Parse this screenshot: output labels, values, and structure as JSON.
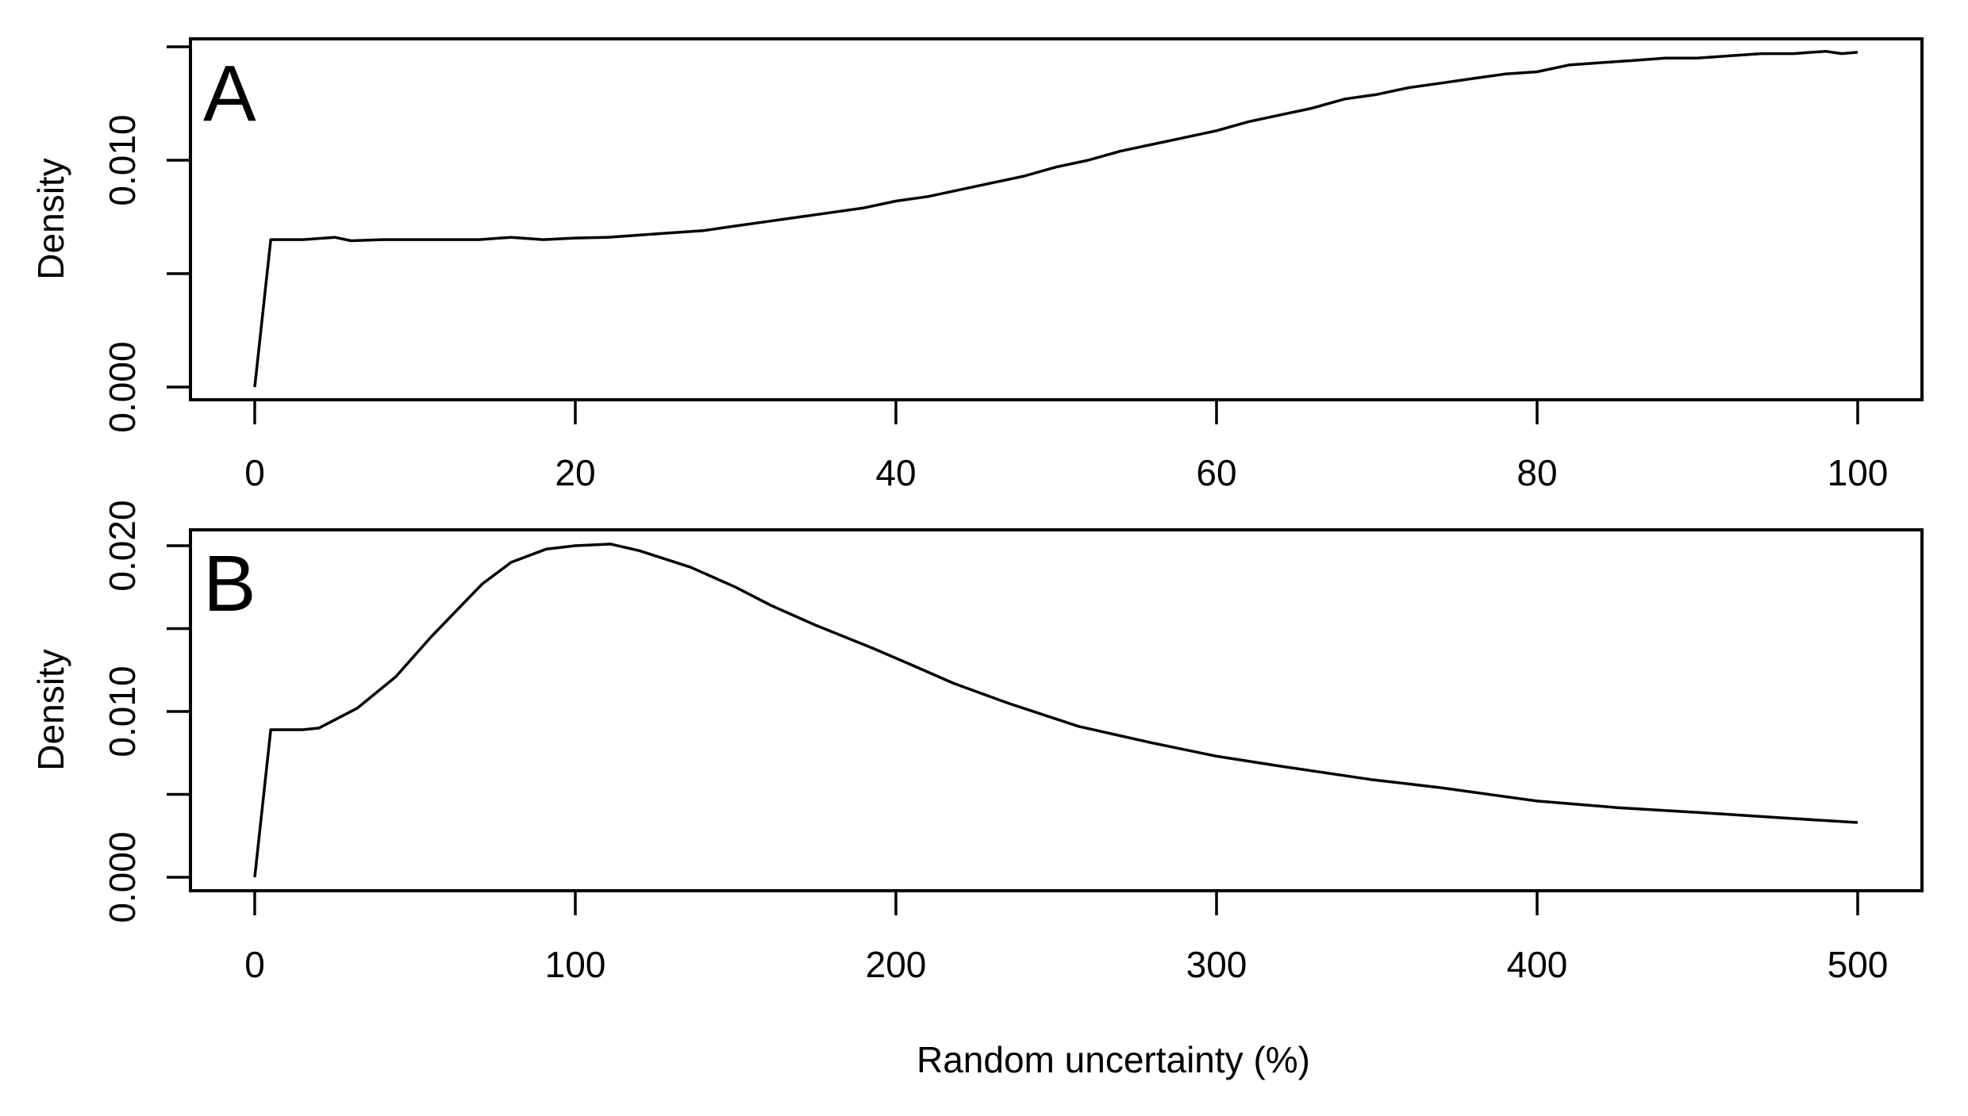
{
  "figure": {
    "shared_xlabel": "Random uncertainty (%)"
  },
  "chart_data": [
    {
      "type": "line",
      "panel": "A",
      "title": "",
      "xlabel": "",
      "ylabel": "Density",
      "xlim": [
        0,
        100
      ],
      "ylim": [
        0,
        0.015
      ],
      "xticks": [
        0,
        20,
        40,
        60,
        80,
        100
      ],
      "xtick_labels": [
        "0",
        "20",
        "40",
        "60",
        "80",
        "100"
      ],
      "yticks": [
        0.0,
        0.005,
        0.01,
        0.015
      ],
      "ytick_labels": [
        "0.000",
        "",
        "0.010",
        ""
      ],
      "grid": false,
      "legend": null,
      "series": [
        {
          "name": "density",
          "x": [
            0,
            1,
            3,
            5,
            6,
            8,
            10,
            12,
            14,
            16,
            18,
            20,
            22,
            24,
            26,
            28,
            30,
            32,
            34,
            36,
            38,
            40,
            42,
            44,
            46,
            48,
            50,
            52,
            54,
            56,
            58,
            60,
            62,
            64,
            66,
            68,
            70,
            72,
            74,
            76,
            78,
            80,
            82,
            84,
            86,
            88,
            90,
            92,
            94,
            96,
            98,
            99,
            100
          ],
          "y": [
            0.0,
            0.0065,
            0.0065,
            0.0066,
            0.00645,
            0.0065,
            0.0065,
            0.0065,
            0.0065,
            0.0066,
            0.0065,
            0.00657,
            0.0066,
            0.0067,
            0.0068,
            0.0069,
            0.0071,
            0.0073,
            0.0075,
            0.0077,
            0.0079,
            0.0082,
            0.0084,
            0.0087,
            0.009,
            0.0093,
            0.0097,
            0.01,
            0.0104,
            0.0107,
            0.011,
            0.0113,
            0.0117,
            0.012,
            0.0123,
            0.0127,
            0.0129,
            0.0132,
            0.0134,
            0.0136,
            0.0138,
            0.0139,
            0.0142,
            0.0143,
            0.0144,
            0.0145,
            0.0145,
            0.0146,
            0.0147,
            0.0147,
            0.0148,
            0.0147,
            0.01476
          ]
        }
      ]
    },
    {
      "type": "line",
      "panel": "B",
      "title": "",
      "xlabel": "Random uncertainty (%)",
      "ylabel": "Density",
      "xlim": [
        0,
        500
      ],
      "ylim": [
        0,
        0.02
      ],
      "xticks": [
        0,
        100,
        200,
        300,
        400,
        500
      ],
      "xtick_labels": [
        "0",
        "100",
        "200",
        "300",
        "400",
        "500"
      ],
      "yticks": [
        0.0,
        0.005,
        0.01,
        0.015,
        0.02
      ],
      "ytick_labels": [
        "0.000",
        "",
        "0.010",
        "",
        "0.020"
      ],
      "grid": false,
      "legend": null,
      "series": [
        {
          "name": "density",
          "x": [
            0,
            5,
            15,
            20,
            32,
            44,
            55,
            65,
            71,
            80,
            91,
            100,
            111,
            120,
            136,
            150,
            161,
            175,
            193,
            205,
            218,
            235,
            257,
            280,
            300,
            320,
            348,
            370,
            400,
            425,
            451,
            475,
            500
          ],
          "y": [
            0.0,
            0.0089,
            0.0089,
            0.009,
            0.0102,
            0.0121,
            0.0145,
            0.0165,
            0.0177,
            0.019,
            0.0198,
            0.02,
            0.0201,
            0.0197,
            0.0187,
            0.0175,
            0.0164,
            0.0152,
            0.0138,
            0.0128,
            0.0117,
            0.0105,
            0.0091,
            0.0081,
            0.0073,
            0.0067,
            0.0059,
            0.0054,
            0.0046,
            0.0042,
            0.0039,
            0.0036,
            0.0033
          ]
        }
      ]
    }
  ],
  "panels": [
    {
      "letter": "A",
      "ylabel": "Density"
    },
    {
      "letter": "B",
      "ylabel": "Density"
    }
  ]
}
